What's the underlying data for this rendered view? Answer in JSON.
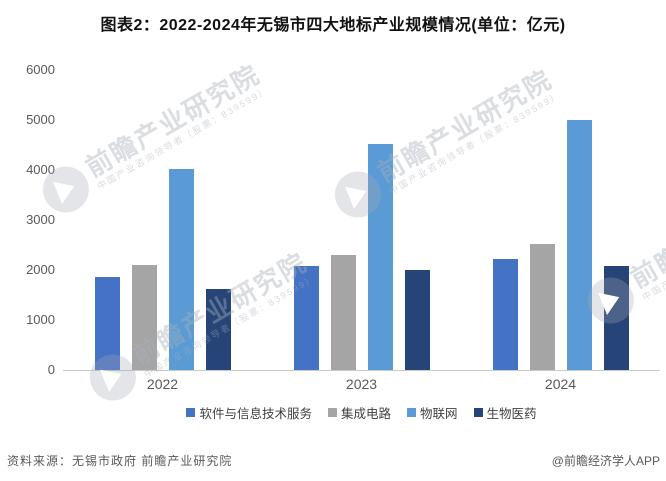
{
  "title": "图表2：2022-2024年无锡市四大地标产业规模情况(单位：亿元)",
  "chart_data": {
    "type": "bar",
    "categories": [
      "2022",
      "2023",
      "2024"
    ],
    "series": [
      {
        "name": "软件与信息技术服务",
        "color": "#4472C4",
        "values": [
          1870,
          2080,
          2230
        ]
      },
      {
        "name": "集成电路",
        "color": "#A5A5A5",
        "values": [
          2100,
          2300,
          2530
        ]
      },
      {
        "name": "物联网",
        "color": "#5B9BD5",
        "values": [
          4020,
          4520,
          5010
        ]
      },
      {
        "name": "生物医药",
        "color": "#264478",
        "values": [
          1630,
          2000,
          2080
        ]
      }
    ],
    "title": "图表2：2022-2024年无锡市四大地标产业规模情况(单位：亿元)",
    "xlabel": "",
    "ylabel": "",
    "ylim": [
      0,
      6000
    ],
    "yticks": [
      0,
      1000,
      2000,
      3000,
      4000,
      5000,
      6000
    ],
    "grid": false,
    "legend_position": "bottom"
  },
  "footer": {
    "source": "资料来源：无锡市政府 前瞻产业研究院",
    "credit": "@前瞻经济学人APP"
  },
  "watermark": {
    "main": "前瞻产业研究院",
    "sub": "中国产业咨询领导者（股票：839599）"
  }
}
